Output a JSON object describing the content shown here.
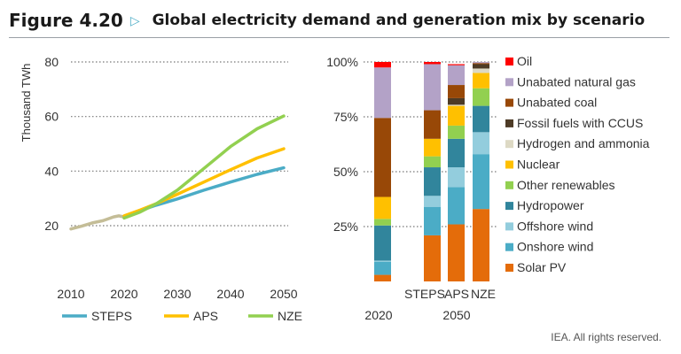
{
  "header": {
    "figure_label": "Figure 4.20",
    "arrow_icon": "triangle-right-outline-icon",
    "title": "Global electricity demand and generation mix by scenario"
  },
  "footer": {
    "credit": "IEA. All rights reserved."
  },
  "chart_data": [
    {
      "type": "line",
      "ylabel": "Thousand TWh",
      "ylim": [
        10,
        80
      ],
      "yticks": [
        20,
        40,
        60,
        80
      ],
      "xlim": [
        2010,
        2050
      ],
      "xticks": [
        2010,
        2020,
        2030,
        2040,
        2050
      ],
      "grid": "horizontal-dotted",
      "legend_position": "bottom",
      "history": {
        "color": "#c4bd97",
        "points": [
          [
            2010,
            18.8
          ],
          [
            2012,
            19.8
          ],
          [
            2014,
            21
          ],
          [
            2016,
            21.8
          ],
          [
            2018,
            23.2
          ],
          [
            2019,
            23.6
          ],
          [
            2020,
            23.2
          ]
        ]
      },
      "series": [
        {
          "name": "STEPS",
          "color": "#4bacc6",
          "points": [
            [
              2020,
              23.3
            ],
            [
              2023,
              25.5
            ],
            [
              2026,
              27.5
            ],
            [
              2030,
              29.8
            ],
            [
              2035,
              33
            ],
            [
              2040,
              36
            ],
            [
              2045,
              38.8
            ],
            [
              2050,
              41.2
            ]
          ]
        },
        {
          "name": "APS",
          "color": "#ffc000",
          "points": [
            [
              2020,
              23.6
            ],
            [
              2023,
              25.7
            ],
            [
              2026,
              28
            ],
            [
              2030,
              31.5
            ],
            [
              2035,
              36
            ],
            [
              2040,
              40.5
            ],
            [
              2045,
              44.8
            ],
            [
              2050,
              48.2
            ]
          ]
        },
        {
          "name": "NZE",
          "color": "#92d050",
          "points": [
            [
              2020,
              22.8
            ],
            [
              2023,
              25
            ],
            [
              2026,
              28
            ],
            [
              2030,
              33
            ],
            [
              2035,
              41
            ],
            [
              2040,
              49
            ],
            [
              2045,
              55.5
            ],
            [
              2050,
              60.2
            ]
          ]
        }
      ]
    },
    {
      "type": "bar",
      "stacked": true,
      "ylim": [
        0,
        100
      ],
      "yticks": [
        "25%",
        "50%",
        "75%",
        "100%"
      ],
      "categories": [
        "2020",
        "STEPS",
        "APS",
        "NZE"
      ],
      "group_labels": [
        {
          "label": "2020",
          "categories": [
            "2020"
          ]
        },
        {
          "label": "2050",
          "categories": [
            "STEPS",
            "APS",
            "NZE"
          ]
        }
      ],
      "legend_position": "right",
      "series": [
        {
          "name": "Solar PV",
          "color": "#e46c0a",
          "values": [
            3,
            21,
            26,
            33
          ]
        },
        {
          "name": "Onshore wind",
          "color": "#4bacc6",
          "values": [
            6,
            13,
            17,
            25
          ]
        },
        {
          "name": "Offshore wind",
          "color": "#93cddd",
          "values": [
            0.5,
            5,
            9,
            10
          ]
        },
        {
          "name": "Hydropower",
          "color": "#31859c",
          "values": [
            16,
            13,
            13,
            12
          ]
        },
        {
          "name": "Other renewables",
          "color": "#92d050",
          "values": [
            3,
            5,
            6,
            8
          ]
        },
        {
          "name": "Nuclear",
          "color": "#ffc000",
          "values": [
            10,
            8,
            9,
            7
          ]
        },
        {
          "name": "Hydrogen and ammonia",
          "color": "#ddd9c4",
          "values": [
            0,
            0,
            0.5,
            2
          ]
        },
        {
          "name": "Fossil fuels with CCUS",
          "color": "#4d3b26",
          "values": [
            0,
            0,
            3,
            2
          ]
        },
        {
          "name": "Unabated coal",
          "color": "#984807",
          "values": [
            36,
            13,
            6,
            0.5
          ]
        },
        {
          "name": "Unabated natural gas",
          "color": "#b3a2c7",
          "values": [
            23,
            21,
            9,
            0.5
          ]
        },
        {
          "name": "Oil",
          "color": "#ff0000",
          "values": [
            2.5,
            1,
            0.5,
            0
          ]
        }
      ]
    }
  ]
}
